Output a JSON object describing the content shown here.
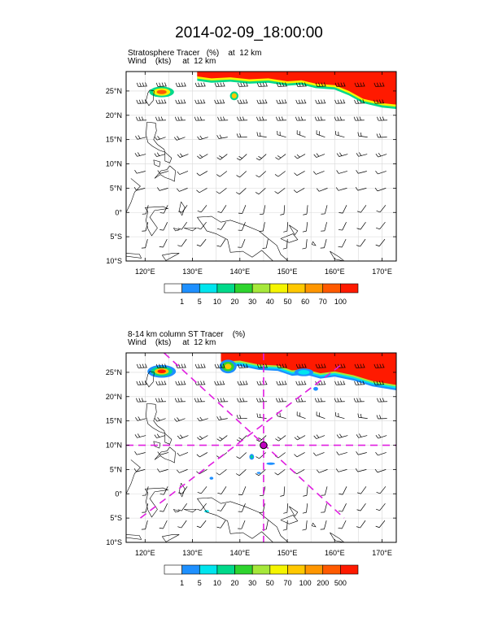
{
  "title": "2014-02-09_18:00:00",
  "chart_data": [
    {
      "type": "heatmap",
      "subtitle_lines": [
        "Stratosphere Tracer   (%)    at  12 km",
        "Wind    (kts)     at  12 km"
      ],
      "lon_ticks": [
        "120°E",
        "130°E",
        "140°E",
        "150°E",
        "160°E",
        "170°E"
      ],
      "lon_values": [
        120,
        130,
        140,
        150,
        160,
        170
      ],
      "lat_ticks": [
        "25°N",
        "20°N",
        "15°N",
        "10°N",
        "5°N",
        "0°",
        "5°S",
        "10°S"
      ],
      "lat_values": [
        25,
        20,
        15,
        10,
        5,
        0,
        -5,
        -10
      ],
      "xlim": [
        116,
        173
      ],
      "ylim": [
        -10,
        29
      ],
      "colorbar_labels": [
        "1",
        "5",
        "10",
        "20",
        "30",
        "40",
        "50",
        "60",
        "70",
        "100"
      ],
      "colorbar_colors": [
        "#ffffff",
        "#1e90ff",
        "#00e5ee",
        "#00d98a",
        "#2ed42e",
        "#a6e83a",
        "#f5f500",
        "#ffc800",
        "#ff9600",
        "#ff5a00",
        "#ff1a00"
      ],
      "grid": true
    },
    {
      "type": "heatmap",
      "subtitle_lines": [
        "8-14 km column ST Tracer    (%)",
        "Wind    (kts)     at  12 km"
      ],
      "lon_ticks": [
        "120°E",
        "130°E",
        "140°E",
        "150°E",
        "160°E",
        "170°E"
      ],
      "lon_values": [
        120,
        130,
        140,
        150,
        160,
        170
      ],
      "lat_ticks": [
        "25°N",
        "20°N",
        "15°N",
        "10°N",
        "5°N",
        "0°",
        "5°S",
        "10°S"
      ],
      "lat_values": [
        25,
        20,
        15,
        10,
        5,
        0,
        -5,
        -10
      ],
      "xlim": [
        116,
        173
      ],
      "ylim": [
        -10,
        29
      ],
      "colorbar_labels": [
        "1",
        "5",
        "10",
        "20",
        "30",
        "50",
        "70",
        "100",
        "200",
        "500"
      ],
      "colorbar_colors": [
        "#ffffff",
        "#1e90ff",
        "#00e5ee",
        "#00d98a",
        "#2ed42e",
        "#a6e83a",
        "#f5f500",
        "#ffc800",
        "#ff9600",
        "#ff5a00",
        "#ff1a00"
      ],
      "grid": true,
      "cross_section_lines": [
        {
          "from": [
            124,
            29
          ],
          "to": [
            162,
            -5
          ]
        },
        {
          "from": [
            116,
            10
          ],
          "to": [
            173,
            10
          ]
        },
        {
          "from": [
            145,
            29
          ],
          "to": [
            145,
            -10
          ]
        },
        {
          "from": [
            119,
            -5
          ],
          "to": [
            162,
            27
          ]
        }
      ],
      "center_marker": [
        145,
        10
      ]
    }
  ]
}
